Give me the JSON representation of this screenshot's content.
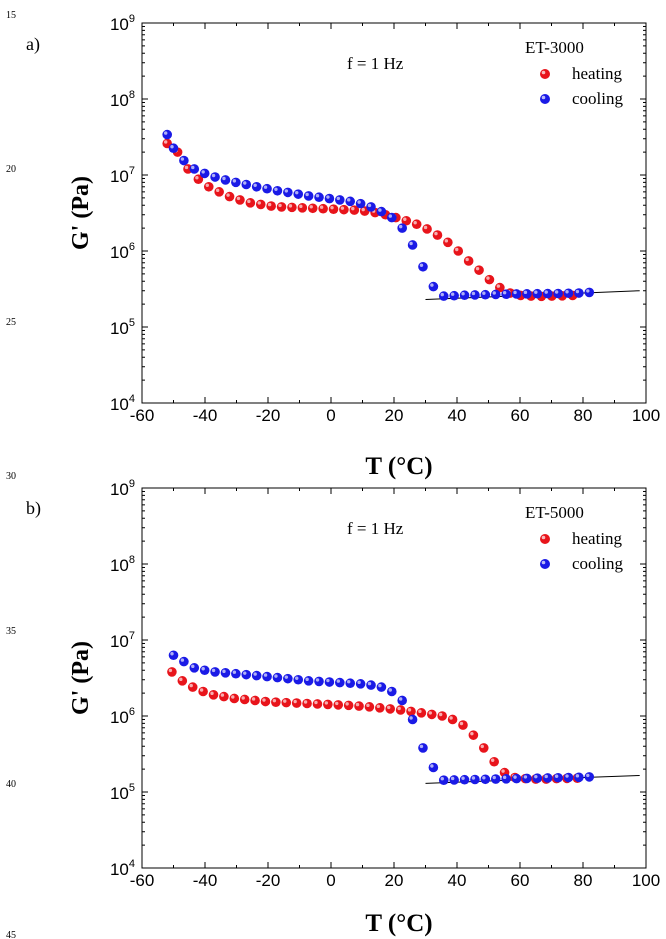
{
  "line_numbers": [
    "15",
    "20",
    "25",
    "30",
    "35",
    "40",
    "45"
  ],
  "colors": {
    "heating": "#e8141b",
    "cooling": "#1a1ae6",
    "axis": "#000000"
  },
  "chart_data": [
    {
      "type": "scatter",
      "panel_label": "a)",
      "annotation": "f = 1 Hz",
      "legend_title": "ET-3000",
      "legend_position": "top-right",
      "xlabel": "T (°C)",
      "ylabel": "G' (Pa)",
      "xlim": [
        -60,
        100
      ],
      "ylim": [
        10000,
        1000000000
      ],
      "yscale": "log",
      "grid": false,
      "x_ticks": [
        "-60",
        "-40",
        "-20",
        "0",
        "20",
        "40",
        "60",
        "80",
        "100"
      ],
      "series": [
        {
          "name": "heating",
          "x": [
            -52,
            -48.7,
            -45.4,
            -42.1,
            -38.8,
            -35.5,
            -32.2,
            -28.9,
            -25.6,
            -22.3,
            -19,
            -15.7,
            -12.4,
            -9.1,
            -5.8,
            -2.5,
            0.8,
            4.1,
            7.4,
            10.7,
            14,
            17.3,
            20.6,
            23.9,
            27.2,
            30.5,
            33.8,
            37.1,
            40.4,
            43.7,
            47,
            50.3,
            53.6,
            56.9,
            60.2,
            63.5,
            66.8,
            70.1,
            73.4,
            76.7
          ],
          "y": [
            26000000,
            20000000,
            12000000,
            8800000,
            7000000,
            6000000,
            5200000,
            4700000,
            4300000,
            4100000,
            3900000,
            3800000,
            3750000,
            3700000,
            3650000,
            3600000,
            3550000,
            3500000,
            3450000,
            3350000,
            3200000,
            3000000,
            2750000,
            2500000,
            2250000,
            1950000,
            1620000,
            1300000,
            1000000,
            740000,
            560000,
            420000,
            330000,
            280000,
            260000,
            255000,
            253000,
            255000,
            257000,
            260000
          ]
        },
        {
          "name": "cooling",
          "x": [
            82,
            78.7,
            75.4,
            72.1,
            68.8,
            65.5,
            62.2,
            58.9,
            55.6,
            52.3,
            49,
            45.7,
            42.4,
            39.1,
            35.8,
            32.5,
            29.2,
            25.9,
            22.6,
            19.3,
            16,
            12.7,
            9.4,
            6.1,
            2.8,
            -0.5,
            -3.8,
            -7.1,
            -10.4,
            -13.7,
            -17,
            -20.3,
            -23.6,
            -26.9,
            -30.2,
            -33.5,
            -36.8,
            -40.1,
            -43.4,
            -46.7,
            -50,
            -52
          ],
          "y": [
            285000,
            280000,
            278000,
            276000,
            275000,
            274000,
            273000,
            272000,
            270000,
            268000,
            266000,
            264000,
            262000,
            258000,
            255000,
            340000,
            620000,
            1200000,
            2000000,
            2750000,
            3300000,
            3800000,
            4200000,
            4500000,
            4700000,
            4900000,
            5100000,
            5300000,
            5600000,
            5900000,
            6200000,
            6600000,
            7000000,
            7500000,
            8000000,
            8600000,
            9400000,
            10500000,
            12000000,
            15500000,
            22500000,
            34000000
          ]
        }
      ],
      "baseline": {
        "x": [
          30,
          98
        ],
        "y": [
          230000,
          300000
        ]
      }
    },
    {
      "type": "scatter",
      "panel_label": "b)",
      "annotation": "f = 1 Hz",
      "legend_title": "ET-5000",
      "legend_position": "top-right",
      "xlabel": "T (°C)",
      "ylabel": "G' (Pa)",
      "xlim": [
        -60,
        100
      ],
      "ylim": [
        10000,
        1000000000
      ],
      "yscale": "log",
      "grid": false,
      "x_ticks": [
        "-60",
        "-40",
        "-20",
        "0",
        "20",
        "40",
        "60",
        "80",
        "100"
      ],
      "series": [
        {
          "name": "heating",
          "x": [
            -50.5,
            -47.2,
            -43.9,
            -40.6,
            -37.3,
            -34,
            -30.7,
            -27.4,
            -24.1,
            -20.8,
            -17.5,
            -14.2,
            -10.9,
            -7.6,
            -4.3,
            -1,
            2.3,
            5.6,
            8.9,
            12.2,
            15.5,
            18.8,
            22.1,
            25.4,
            28.7,
            32,
            35.3,
            38.6,
            41.9,
            45.2,
            48.5,
            51.8,
            55.1,
            58.4,
            61.7,
            65,
            68.3,
            71.6,
            74.9,
            78.2
          ],
          "y": [
            3800000,
            2900000,
            2400000,
            2100000,
            1900000,
            1800000,
            1700000,
            1650000,
            1600000,
            1550000,
            1520000,
            1500000,
            1480000,
            1460000,
            1440000,
            1420000,
            1400000,
            1380000,
            1350000,
            1320000,
            1280000,
            1240000,
            1200000,
            1150000,
            1100000,
            1050000,
            1000000,
            900000,
            760000,
            560000,
            380000,
            250000,
            180000,
            155000,
            150000,
            148000,
            148000,
            150000,
            151000,
            152000
          ]
        },
        {
          "name": "cooling",
          "x": [
            82,
            78.7,
            75.4,
            72.1,
            68.8,
            65.5,
            62.2,
            58.9,
            55.6,
            52.3,
            49,
            45.7,
            42.4,
            39.1,
            35.8,
            32.5,
            29.2,
            25.9,
            22.6,
            19.3,
            16,
            12.7,
            9.4,
            6.1,
            2.8,
            -0.5,
            -3.8,
            -7.1,
            -10.4,
            -13.7,
            -17,
            -20.3,
            -23.6,
            -26.9,
            -30.2,
            -33.5,
            -36.8,
            -40.1,
            -43.4,
            -46.7,
            -50
          ],
          "y": [
            158000,
            156000,
            155000,
            154000,
            153000,
            152000,
            151000,
            150000,
            149000,
            148000,
            147000,
            146000,
            145000,
            144000,
            143000,
            210000,
            380000,
            900000,
            1600000,
            2100000,
            2400000,
            2550000,
            2650000,
            2700000,
            2750000,
            2800000,
            2850000,
            2900000,
            3000000,
            3100000,
            3200000,
            3300000,
            3400000,
            3500000,
            3600000,
            3700000,
            3800000,
            4000000,
            4300000,
            5200000,
            6300000
          ]
        }
      ],
      "baseline": {
        "x": [
          30,
          98
        ],
        "y": [
          130000,
          165000
        ]
      }
    }
  ]
}
